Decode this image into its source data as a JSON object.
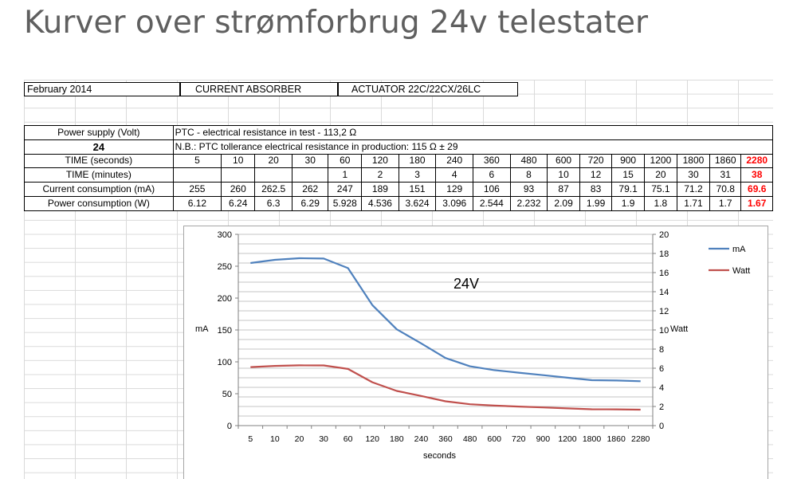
{
  "slide_title": "Kurver over strømforbrug 24v telestater",
  "header": {
    "date": "February 2014",
    "product": "CURRENT ABSORBER",
    "actuator": "ACTUATOR 22C/22CX/26LC"
  },
  "info": {
    "supply_label": "Power supply (Volt)",
    "supply_value": "24",
    "ptc_note": "PTC - electrical resistance in test - 113,2 Ω",
    "tolerance_note": "N.B.: PTC tollerance electrical resistance in production: 115 Ω ± 29"
  },
  "table": {
    "rows": [
      {
        "label": "TIME (seconds)",
        "cells": [
          "5",
          "10",
          "20",
          "30",
          "60",
          "120",
          "180",
          "240",
          "360",
          "480",
          "600",
          "720",
          "900",
          "1200",
          "1800",
          "1860",
          "2280"
        ]
      },
      {
        "label": "TIME (minutes)",
        "cells": [
          "",
          "",
          "",
          "",
          "1",
          "2",
          "3",
          "4",
          "6",
          "8",
          "10",
          "12",
          "15",
          "20",
          "30",
          "31",
          "38"
        ]
      },
      {
        "label": "Current consumption (mA)",
        "cells": [
          "255",
          "260",
          "262.5",
          "262",
          "247",
          "189",
          "151",
          "129",
          "106",
          "93",
          "87",
          "83",
          "79.1",
          "75.1",
          "71.2",
          "70.8",
          "69.6"
        ]
      },
      {
        "label": "Power consumption (W)",
        "cells": [
          "6.12",
          "6.24",
          "6.3",
          "6.29",
          "5.928",
          "4.536",
          "3.624",
          "3.096",
          "2.544",
          "2.232",
          "2.09",
          "1.99",
          "1.9",
          "1.8",
          "1.71",
          "1.7",
          "1.67"
        ]
      }
    ]
  },
  "chart_data": {
    "type": "line",
    "annotation": "24V",
    "xlabel": "seconds",
    "ylabel": "mA",
    "y2label": "Watt",
    "categories": [
      "5",
      "10",
      "20",
      "30",
      "60",
      "120",
      "180",
      "240",
      "360",
      "480",
      "600",
      "720",
      "900",
      "1200",
      "1800",
      "1860",
      "2280"
    ],
    "ylim": [
      0,
      300
    ],
    "yticks": [
      0,
      50,
      100,
      150,
      200,
      250,
      300
    ],
    "y2lim": [
      0,
      20
    ],
    "y2ticks": [
      0,
      2,
      4,
      6,
      8,
      10,
      12,
      14,
      16,
      18,
      20
    ],
    "grid": true,
    "legend_position": "top-right",
    "series": [
      {
        "name": "mA",
        "axis": "left",
        "color": "#4f81bd",
        "values": [
          255,
          260,
          262.5,
          262,
          247,
          189,
          151,
          129,
          106,
          93,
          87,
          83,
          79.1,
          75.1,
          71.2,
          70.8,
          69.6
        ]
      },
      {
        "name": "Watt",
        "axis": "right",
        "color": "#c0504d",
        "values": [
          6.12,
          6.24,
          6.3,
          6.29,
          5.928,
          4.536,
          3.624,
          3.096,
          2.544,
          2.232,
          2.09,
          1.99,
          1.9,
          1.8,
          1.71,
          1.7,
          1.67
        ]
      }
    ]
  }
}
